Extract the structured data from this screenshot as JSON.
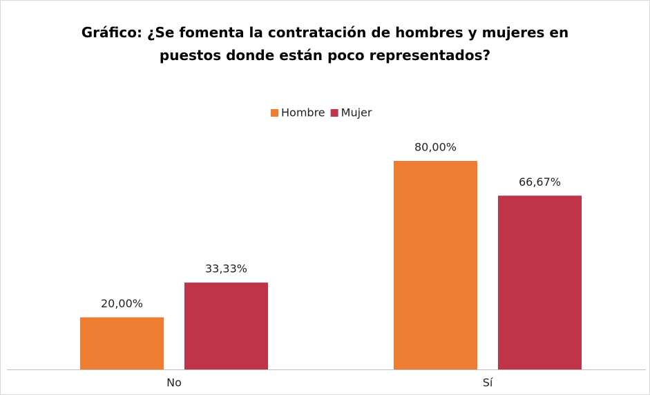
{
  "chart_data": {
    "type": "bar",
    "title": "Gráfico: ¿Se fomenta la contratación de hombres y mujeres en puestos donde están poco representados?",
    "categories": [
      "No",
      "Sí"
    ],
    "series": [
      {
        "name": "Hombre",
        "color": "#ED7D31",
        "values": [
          20,
          80
        ],
        "value_labels": [
          "20,00%",
          "80,00%"
        ]
      },
      {
        "name": "Mujer",
        "color": "#C0344A",
        "values": [
          33.33,
          66.67
        ],
        "value_labels": [
          "33,33%",
          "66,67%"
        ]
      }
    ],
    "legend": "top"
  }
}
